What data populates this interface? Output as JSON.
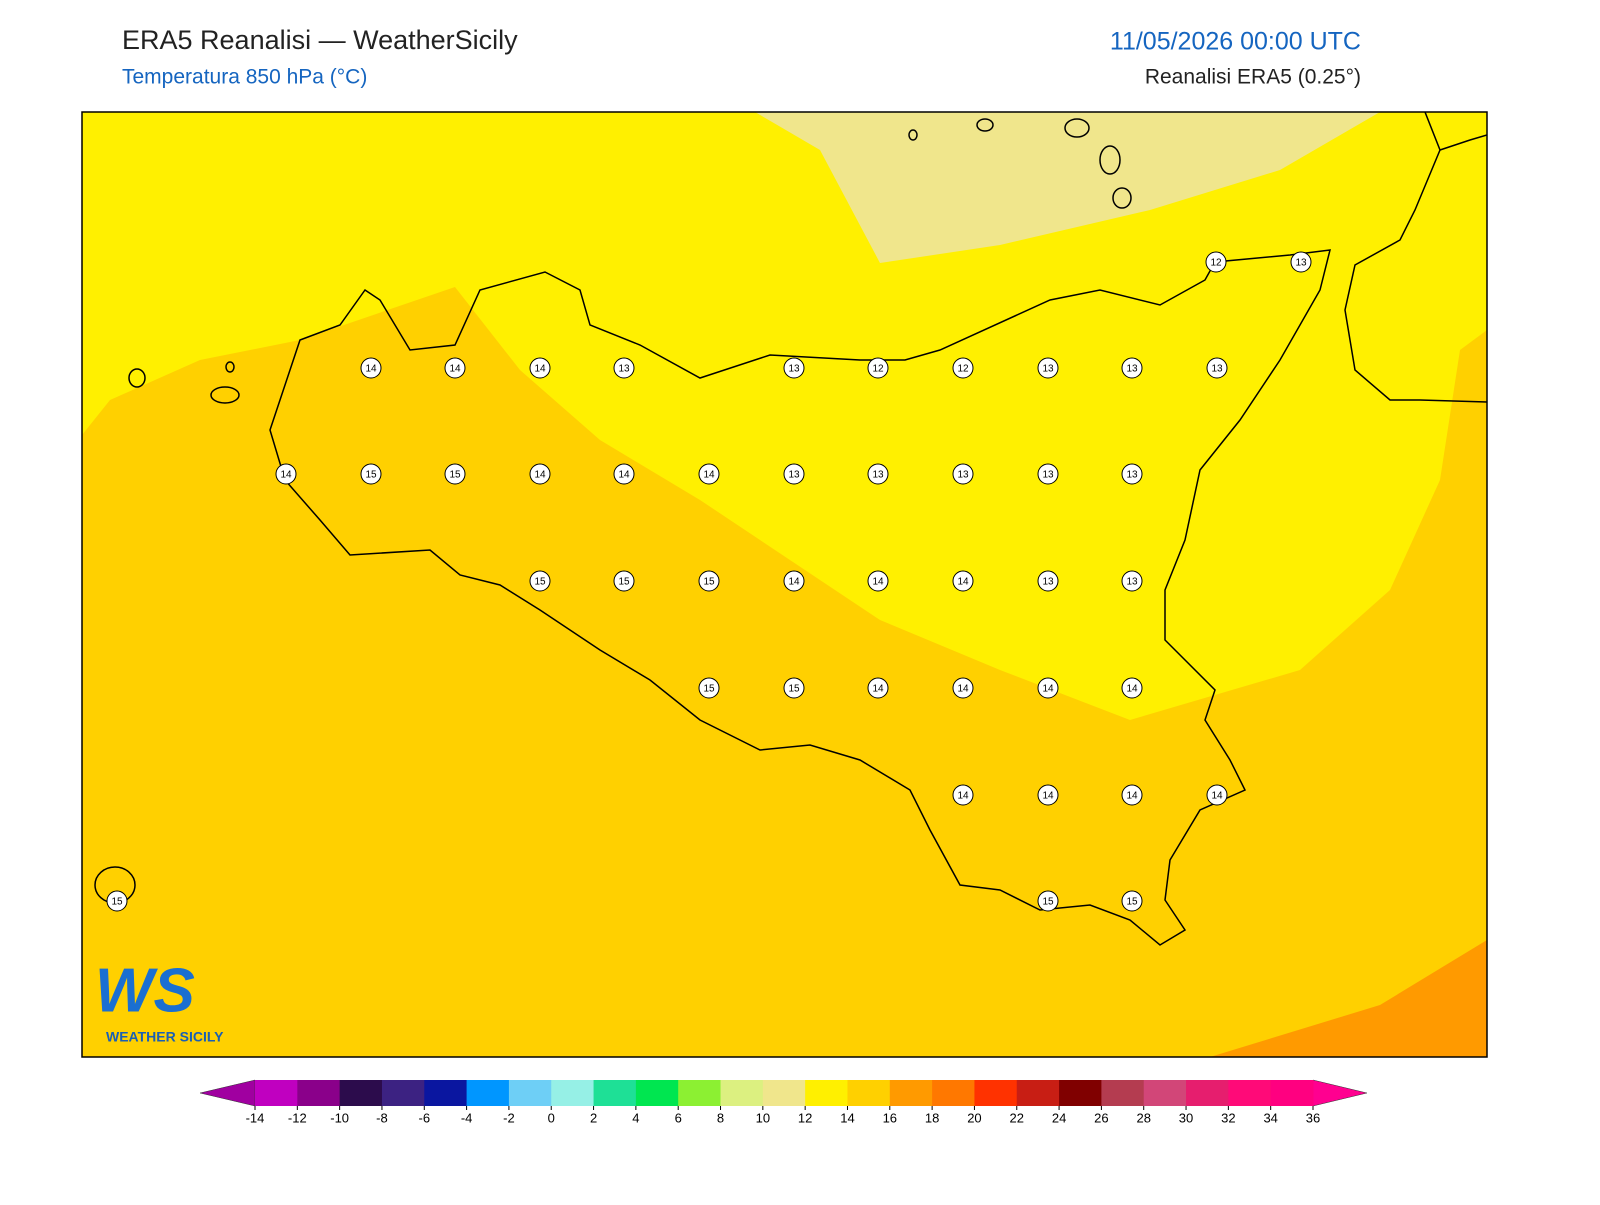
{
  "header": {
    "title": "ERA5 Reanalisi — WeatherSicily",
    "subtitle": "Temperatura 850 hPa (°C)",
    "date": "11/05/2026 00:00 UTC",
    "source": "Reanalisi ERA5 (0.25°)"
  },
  "stations": [
    12,
    13,
    14,
    14,
    14,
    13,
    13,
    12,
    12,
    13,
    13,
    13,
    14,
    15,
    15,
    14,
    14,
    14,
    13,
    13,
    13,
    13,
    13,
    15,
    15,
    15,
    14,
    14,
    14,
    13,
    13,
    15,
    15,
    14,
    14,
    14,
    14,
    14,
    14,
    14,
    14,
    15,
    15,
    15
  ],
  "colorbar": {
    "ticks": [
      -14,
      -12,
      -10,
      -8,
      -6,
      -4,
      -2,
      0,
      2,
      4,
      6,
      8,
      10,
      12,
      14,
      16,
      18,
      20,
      22,
      24,
      26,
      28,
      30,
      32,
      34,
      36
    ],
    "colors": [
      "#c000c0",
      "#8a008a",
      "#2c0c4c",
      "#3c2282",
      "#0a16a0",
      "#0096ff",
      "#6ecff6",
      "#96f0e6",
      "#1ee096",
      "#00e650",
      "#8cf032",
      "#dcf080",
      "#f0e68c",
      "#fff000",
      "#ffd000",
      "#ff9a00",
      "#ff7800",
      "#ff3200",
      "#c81e14",
      "#800000",
      "#b43c50",
      "#d24678",
      "#e61e6e",
      "#ff0a78",
      "#ff0080"
    ],
    "under": "#a000a0",
    "over": "#ff0090"
  },
  "logo": {
    "initials": "WS",
    "name": "WEATHER SICILY"
  }
}
